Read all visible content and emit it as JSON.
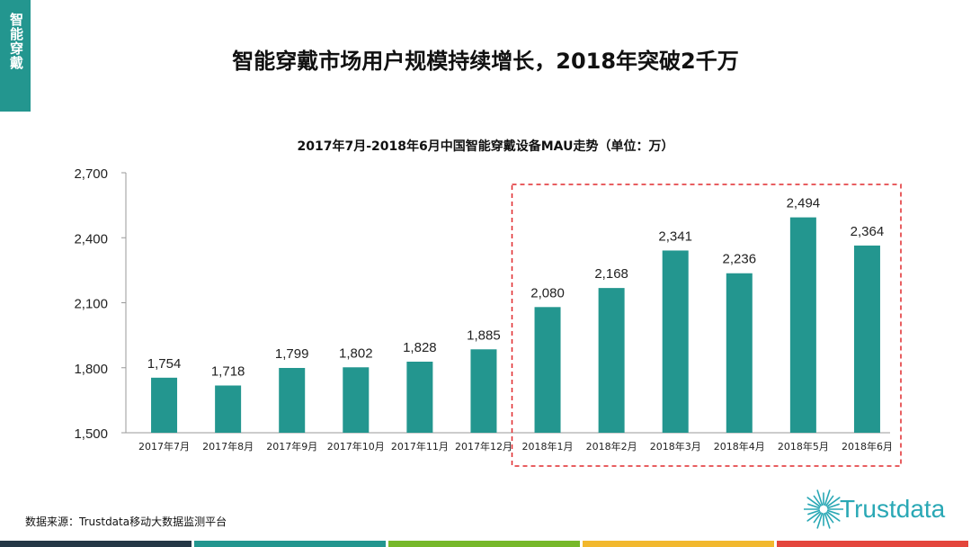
{
  "side_tab": {
    "label": "智能穿戴"
  },
  "page_title": "智能穿戴市场用户规模持续增长，2018年突破2千万",
  "chart_data": {
    "type": "bar",
    "title": "2017年7月-2018年6月中国智能穿戴设备MAU走势（单位：万）",
    "categories": [
      "2017年7月",
      "2017年8月",
      "2017年9月",
      "2017年10月",
      "2017年11月",
      "2017年12月",
      "2018年1月",
      "2018年2月",
      "2018年3月",
      "2018年4月",
      "2018年5月",
      "2018年6月"
    ],
    "values": [
      1754,
      1718,
      1799,
      1802,
      1828,
      1885,
      2080,
      2168,
      2341,
      2236,
      2494,
      2364
    ],
    "value_labels": [
      "1,754",
      "1,718",
      "1,799",
      "1,802",
      "1,828",
      "1,885",
      "2,080",
      "2,168",
      "2,341",
      "2,236",
      "2,494",
      "2,364"
    ],
    "ylim": [
      1500,
      2700
    ],
    "yticks": [
      1500,
      1800,
      2100,
      2400,
      2700
    ],
    "ytick_labels": [
      "1,500",
      "1,800",
      "2,100",
      "2,400",
      "2,700"
    ],
    "bar_color": "#23968f",
    "highlight": {
      "from_index": 6,
      "to_index": 11,
      "color": "#e0282b",
      "style": "dashed"
    },
    "xlabel": "",
    "ylabel": "",
    "grid": false
  },
  "source_text": "数据来源：Trustdata移动大数据监测平台",
  "logo": {
    "text": "Trustdata",
    "color": "#2aa8b5"
  },
  "colors": {
    "accent": "#23968f",
    "bottom_bar": [
      "#243746",
      "#23968f",
      "#77b82a",
      "#f2b82e",
      "#e4463c"
    ]
  }
}
